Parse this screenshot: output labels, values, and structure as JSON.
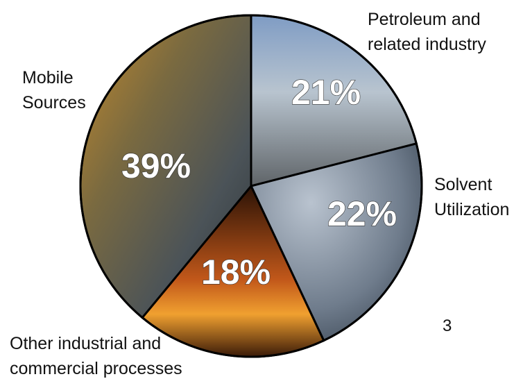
{
  "chart_data": {
    "type": "pie",
    "slices": [
      {
        "label": "Petroleum and related industry",
        "label_lines": [
          "Petroleum and",
          "related industry"
        ],
        "value": 21,
        "value_label": "21%",
        "color": "#8a8f96"
      },
      {
        "label": "Solvent Utilization",
        "label_lines": [
          "Solvent",
          "Utilization"
        ],
        "value": 22,
        "value_label": "22%",
        "color": "#5d6874"
      },
      {
        "label": "Other industrial and commercial processes",
        "label_lines": [
          "Other industrial and",
          "commercial processes"
        ],
        "value": 18,
        "value_label": "18%",
        "color": "#b0561a"
      },
      {
        "label": "Mobile Sources",
        "label_lines": [
          "Mobile",
          "Sources"
        ],
        "value": 39,
        "value_label": "39%",
        "color": "#6f6a3e"
      }
    ]
  },
  "page_number": "3"
}
